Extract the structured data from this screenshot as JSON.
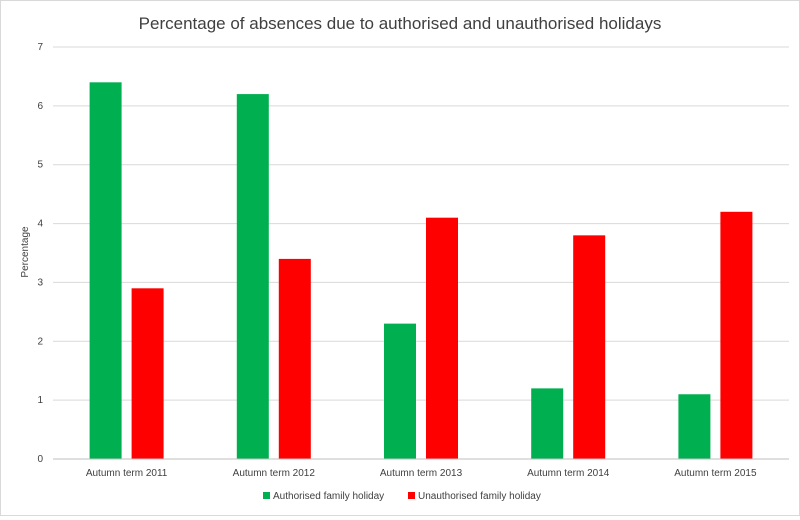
{
  "chart_data": {
    "type": "bar",
    "title": "Percentage of absences due to authorised and unauthorised holidays",
    "xlabel": "",
    "ylabel": "Percentage",
    "ylim": [
      0,
      7
    ],
    "yticks": [
      0,
      1,
      2,
      3,
      4,
      5,
      6,
      7
    ],
    "grid": true,
    "legend_position": "bottom",
    "categories": [
      "Autumn term 2011",
      "Autumn term 2012",
      "Autumn term 2013",
      "Autumn term 2014",
      "Autumn term 2015"
    ],
    "series": [
      {
        "name": "Authorised family holiday",
        "color": "#00b050",
        "values": [
          6.4,
          6.2,
          2.3,
          1.2,
          1.1
        ]
      },
      {
        "name": "Unauthorised family holiday",
        "color": "#ff0000",
        "values": [
          2.9,
          3.4,
          4.1,
          3.8,
          4.2
        ]
      }
    ]
  }
}
